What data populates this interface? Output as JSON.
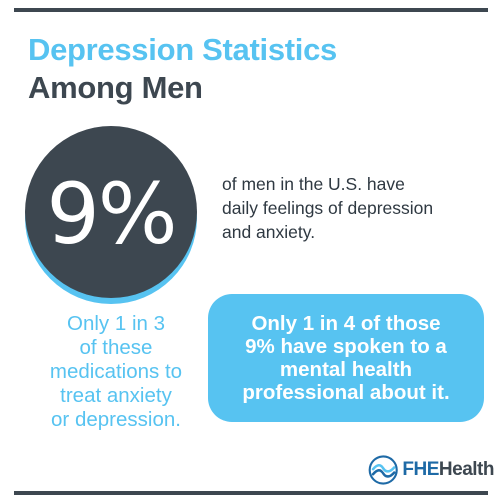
{
  "title": {
    "line1": "Depression Statistics",
    "line2": "Among Men"
  },
  "stat": {
    "value": "9%",
    "description_lines": [
      "of men in the U.S. have",
      "daily feelings of depression",
      "and anxiety."
    ]
  },
  "left_note_lines": [
    "Only 1 in 3",
    "of these",
    "medications to",
    "treat anxiety",
    "or depression."
  ],
  "bubble_lines": [
    "Only 1 in 4 of those",
    "9% have spoken to a",
    "mental health",
    "professional about it."
  ],
  "logo": {
    "part1": "FHE",
    "part2": "Health",
    "icon": "wave-logo-icon"
  },
  "colors": {
    "accent_blue": "#57c3f1",
    "dark_slate": "#3d4750",
    "logo_blue": "#1e6aa6"
  }
}
